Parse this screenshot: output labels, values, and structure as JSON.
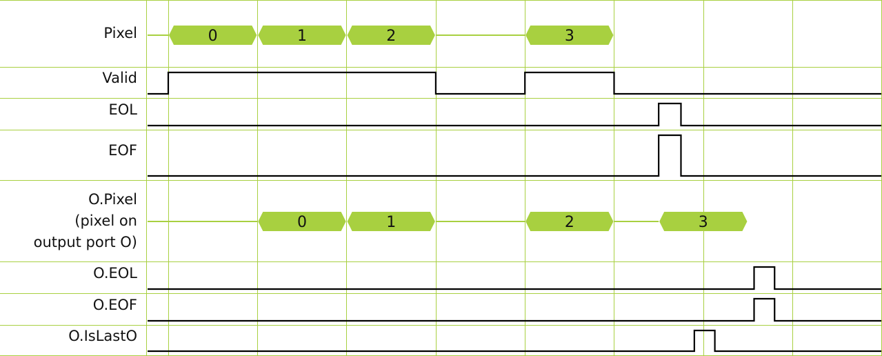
{
  "colors": {
    "grid": "#a8d040",
    "bus_fill": "#a8d040",
    "signal": "#000000"
  },
  "signals": [
    {
      "label": "Pixel",
      "type": "bus",
      "segments": [
        {
          "t0": 0,
          "t1": 1,
          "value": "0"
        },
        {
          "t0": 1,
          "t1": 2,
          "value": "1"
        },
        {
          "t0": 2,
          "t1": 3,
          "value": "2"
        },
        {
          "t0": 4,
          "t1": 5,
          "value": "3"
        }
      ],
      "idle_until": 4
    },
    {
      "label": "Valid",
      "type": "bit",
      "init": 0,
      "edges": [
        0,
        3,
        4,
        5
      ]
    },
    {
      "label": "EOL",
      "type": "bit",
      "init": 0,
      "edges": [
        5.5,
        5.75
      ]
    },
    {
      "label": "EOF",
      "type": "bit",
      "init": 0,
      "edges": [
        5.5,
        5.75
      ]
    },
    {
      "label": "O.Pixel\n(pixel on\noutput port O)",
      "type": "bus",
      "segments": [
        {
          "t0": 1,
          "t1": 2,
          "value": "0"
        },
        {
          "t0": 2,
          "t1": 3,
          "value": "1"
        },
        {
          "t0": 4,
          "t1": 5,
          "value": "2"
        },
        {
          "t0": 5.5,
          "t1": 6.5,
          "value": "3"
        }
      ],
      "idle_until": 5.5
    },
    {
      "label": "O.EOL",
      "type": "bit",
      "init": 0,
      "edges": [
        6.57,
        6.8
      ]
    },
    {
      "label": "O.EOF",
      "type": "bit",
      "init": 0,
      "edges": [
        6.57,
        6.8
      ]
    },
    {
      "label": "O.IsLastO",
      "type": "bit",
      "init": 0,
      "edges": [
        5.9,
        6.13
      ]
    }
  ]
}
